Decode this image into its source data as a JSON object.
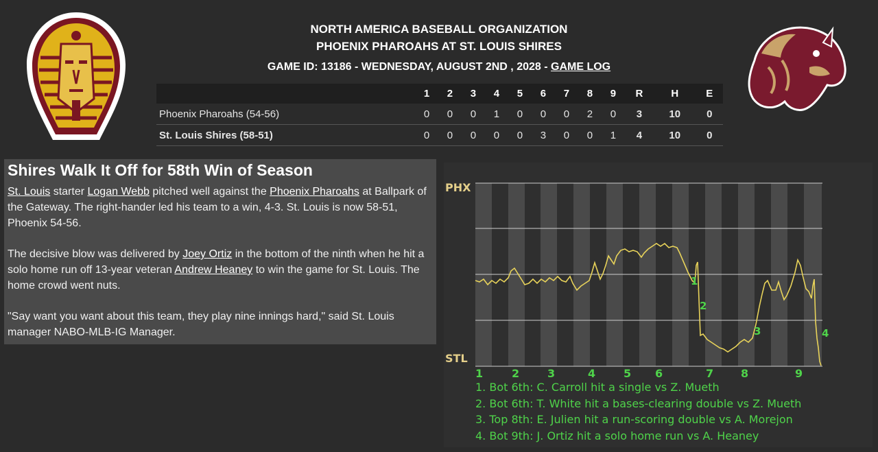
{
  "header": {
    "org": "NORTH AMERICA BASEBALL ORGANIZATION",
    "matchup": "PHOENIX PHAROAHS AT ST. LOUIS SHIRES",
    "game_info": "GAME ID: 13186 - WEDNESDAY, AUGUST 2ND , 2028 - ",
    "game_log_link": "GAME LOG"
  },
  "logos": {
    "away": "pharaoh-logo",
    "home": "horse-logo"
  },
  "boxscore": {
    "columns": [
      "1",
      "2",
      "3",
      "4",
      "5",
      "6",
      "7",
      "8",
      "9",
      "R",
      "H",
      "E"
    ],
    "rows": [
      {
        "team": "Phoenix Pharoahs (54-56)",
        "innings": [
          "0",
          "0",
          "0",
          "1",
          "0",
          "0",
          "0",
          "2",
          "0"
        ],
        "r": "3",
        "h": "10",
        "e": "0"
      },
      {
        "team": "St. Louis Shires (58-51)",
        "innings": [
          "0",
          "0",
          "0",
          "0",
          "0",
          "3",
          "0",
          "0",
          "1"
        ],
        "r": "4",
        "h": "10",
        "e": "0"
      }
    ]
  },
  "story": {
    "headline": "Shires Walk It Off for 58th Win of Season",
    "p1": {
      "link1": "St. Louis",
      "t1": " starter ",
      "link2": "Logan Webb",
      "t2": " pitched well against the ",
      "link3": "Phoenix Pharoahs",
      "t3": " at Ballpark of the Gateway. The right-hander led his team to a win, 4-3. St. Louis is now 58-51, Phoenix 54-56."
    },
    "p2": {
      "t1": "The decisive blow was delivered by ",
      "link1": "Joey Ortiz",
      "t2": " in the bottom of the ninth when he hit a solo home run off 13-year veteran ",
      "link2": "Andrew Heaney",
      "t3": " to win the game for St. Louis. The home crowd went nuts."
    },
    "p3": "\"Say want you want about this team, they play nine innings hard,\" said St. Louis manager NABO-MLB-IG Manager."
  },
  "win_prob": {
    "top_label": "PHX",
    "bottom_label": "STL",
    "colors": {
      "line": "#e8d35a",
      "grid": "#cfcfcf",
      "stripe_dark": "#2f2f2f",
      "stripe_light": "#4a4a4a",
      "accent": "#4fd34a"
    },
    "innings": [
      "1",
      "2",
      "3",
      "4",
      "5",
      "6",
      "7",
      "8",
      "9"
    ],
    "markers": [
      "1",
      "2",
      "3",
      "4"
    ],
    "events": [
      "1. Bot 6th: C. Carroll hit a single vs Z. Mueth",
      "2. Bot 6th: T. White hit a bases-clearing double vs Z. Mueth",
      "3. Top 8th: E. Julien hit a run-scoring double vs A. Morejon",
      "4. Bot 9th: J. Ortiz hit a solo home run vs A. Heaney"
    ]
  }
}
